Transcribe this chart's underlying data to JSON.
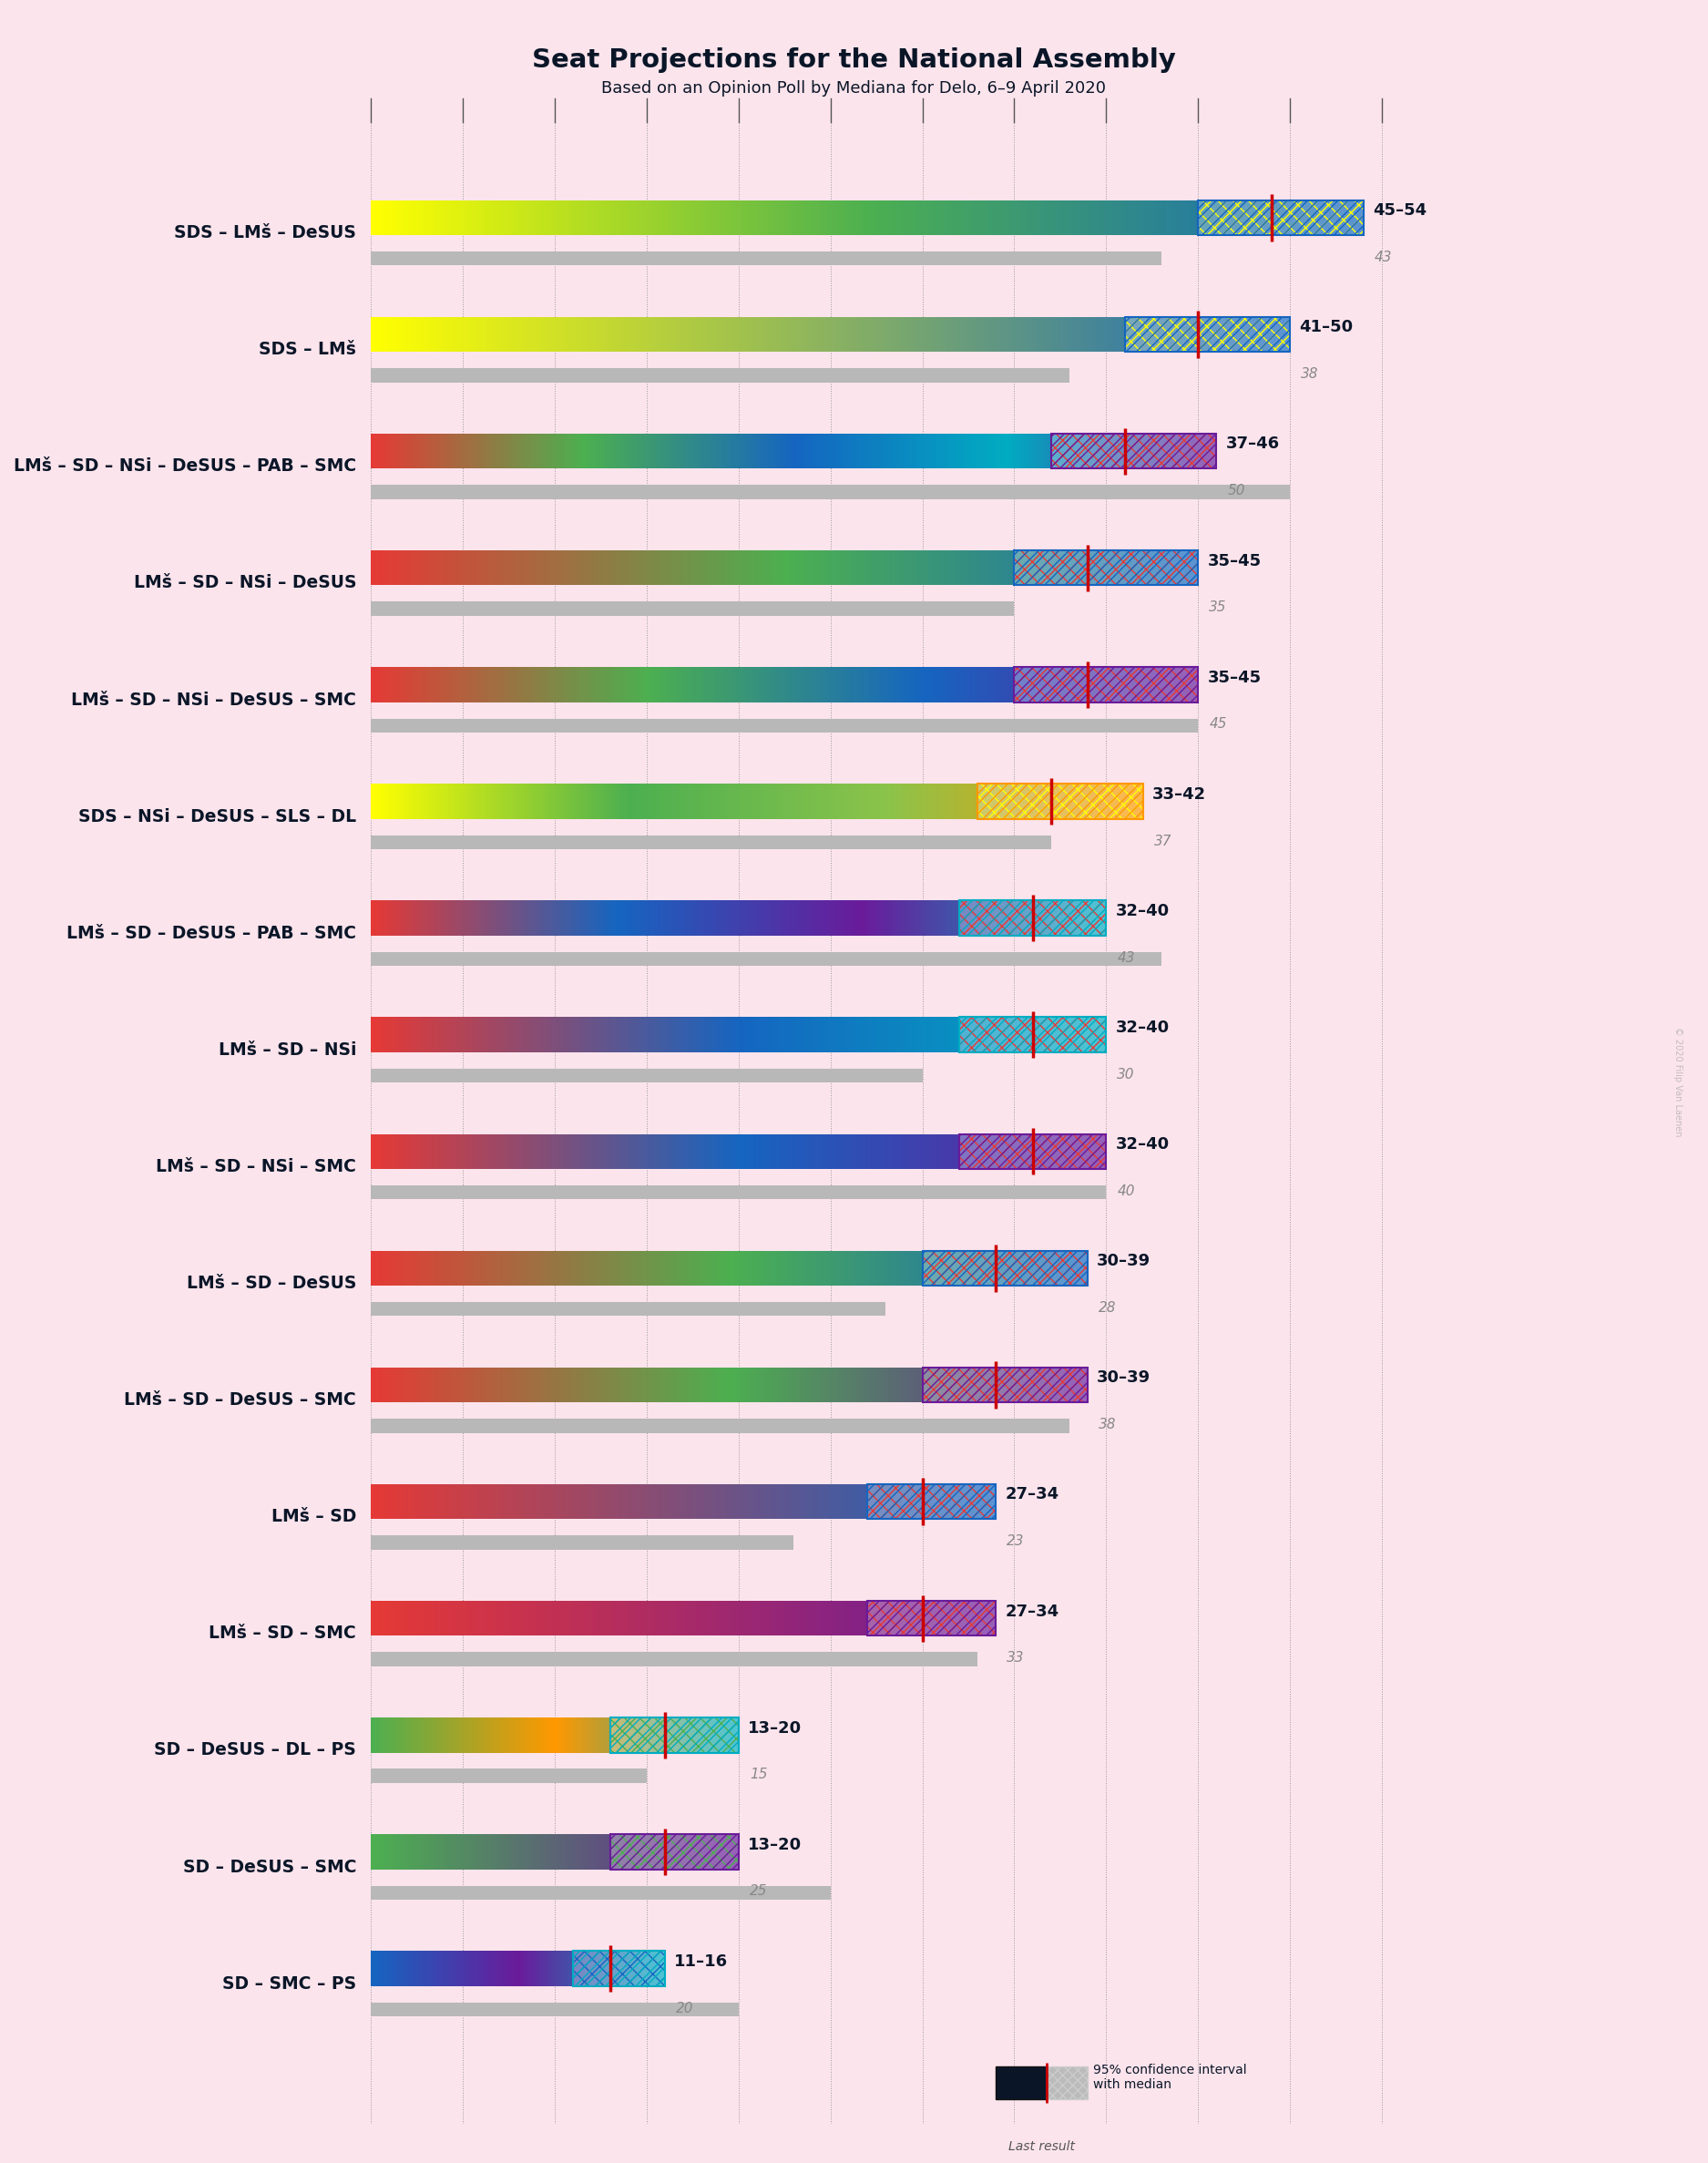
{
  "title": "Seat Projections for the National Assembly",
  "subtitle": "Based on an Opinion Poll by Mediana for Delo, 6–9 April 2020",
  "background_color": "#fce4ec",
  "coalitions": [
    {
      "label": "SDS – LMš – DeSUS",
      "range_low": 45,
      "range_high": 54,
      "median": 49,
      "last_result": 43,
      "colors": [
        "#ffff00",
        "#4caf50",
        "#1565c0"
      ],
      "right_coalition": true
    },
    {
      "label": "SDS – LMš",
      "range_low": 41,
      "range_high": 50,
      "median": 45,
      "last_result": 38,
      "colors": [
        "#ffff00",
        "#1565c0"
      ],
      "right_coalition": true
    },
    {
      "label": "LMš – SD – NSi – DeSUS – PAB – SMC",
      "range_low": 37,
      "range_high": 46,
      "median": 41,
      "last_result": 50,
      "colors": [
        "#e53935",
        "#4caf50",
        "#1565c0",
        "#00acc1",
        "#6a1b9a"
      ],
      "right_coalition": false
    },
    {
      "label": "LMš – SD – NSi – DeSUS",
      "range_low": 35,
      "range_high": 45,
      "median": 39,
      "last_result": 35,
      "colors": [
        "#e53935",
        "#4caf50",
        "#1565c0"
      ],
      "right_coalition": false
    },
    {
      "label": "LMš – SD – NSi – DeSUS – SMC",
      "range_low": 35,
      "range_high": 45,
      "median": 39,
      "last_result": 45,
      "colors": [
        "#e53935",
        "#4caf50",
        "#1565c0",
        "#6a1b9a"
      ],
      "right_coalition": false
    },
    {
      "label": "SDS – NSi – DeSUS – SLS – DL",
      "range_low": 33,
      "range_high": 42,
      "median": 37,
      "last_result": 37,
      "colors": [
        "#ffff00",
        "#4caf50",
        "#8bc34a",
        "#ff9800"
      ],
      "right_coalition": true
    },
    {
      "label": "LMš – SD – DeSUS – PAB – SMC",
      "range_low": 32,
      "range_high": 40,
      "median": 36,
      "last_result": 43,
      "colors": [
        "#e53935",
        "#1565c0",
        "#6a1b9a",
        "#00acc1"
      ],
      "right_coalition": false
    },
    {
      "label": "LMš – SD – NSi",
      "range_low": 32,
      "range_high": 40,
      "median": 36,
      "last_result": 30,
      "colors": [
        "#e53935",
        "#1565c0",
        "#00acc1"
      ],
      "right_coalition": false
    },
    {
      "label": "LMš – SD – NSi – SMC",
      "range_low": 32,
      "range_high": 40,
      "median": 36,
      "last_result": 40,
      "colors": [
        "#e53935",
        "#1565c0",
        "#6a1b9a"
      ],
      "right_coalition": false
    },
    {
      "label": "LMš – SD – DeSUS",
      "range_low": 30,
      "range_high": 39,
      "median": 34,
      "last_result": 28,
      "colors": [
        "#e53935",
        "#4caf50",
        "#1565c0"
      ],
      "right_coalition": false
    },
    {
      "label": "LMš – SD – DeSUS – SMC",
      "range_low": 30,
      "range_high": 39,
      "median": 34,
      "last_result": 38,
      "colors": [
        "#e53935",
        "#4caf50",
        "#6a1b9a"
      ],
      "right_coalition": false
    },
    {
      "label": "LMš – SD",
      "range_low": 27,
      "range_high": 34,
      "median": 30,
      "last_result": 23,
      "colors": [
        "#e53935",
        "#1565c0"
      ],
      "right_coalition": false
    },
    {
      "label": "LMš – SD – SMC",
      "range_low": 27,
      "range_high": 34,
      "median": 30,
      "last_result": 33,
      "colors": [
        "#e53935",
        "#6a1b9a"
      ],
      "right_coalition": false
    },
    {
      "label": "SD – DeSUS – DL – PS",
      "range_low": 13,
      "range_high": 20,
      "median": 16,
      "last_result": 15,
      "colors": [
        "#4caf50",
        "#ff9800",
        "#00acc1"
      ],
      "right_coalition": false
    },
    {
      "label": "SD – DeSUS – SMC",
      "range_low": 13,
      "range_high": 20,
      "median": 16,
      "last_result": 25,
      "colors": [
        "#4caf50",
        "#6a1b9a"
      ],
      "right_coalition": false
    },
    {
      "label": "SD – SMC – PS",
      "range_low": 11,
      "range_high": 16,
      "median": 13,
      "last_result": 20,
      "colors": [
        "#1565c0",
        "#6a1b9a",
        "#00acc1"
      ],
      "right_coalition": false
    }
  ],
  "x_max": 58,
  "grid_ticks": [
    0,
    5,
    10,
    15,
    20,
    25,
    30,
    35,
    40,
    45,
    50,
    55
  ],
  "majority_line": 46
}
